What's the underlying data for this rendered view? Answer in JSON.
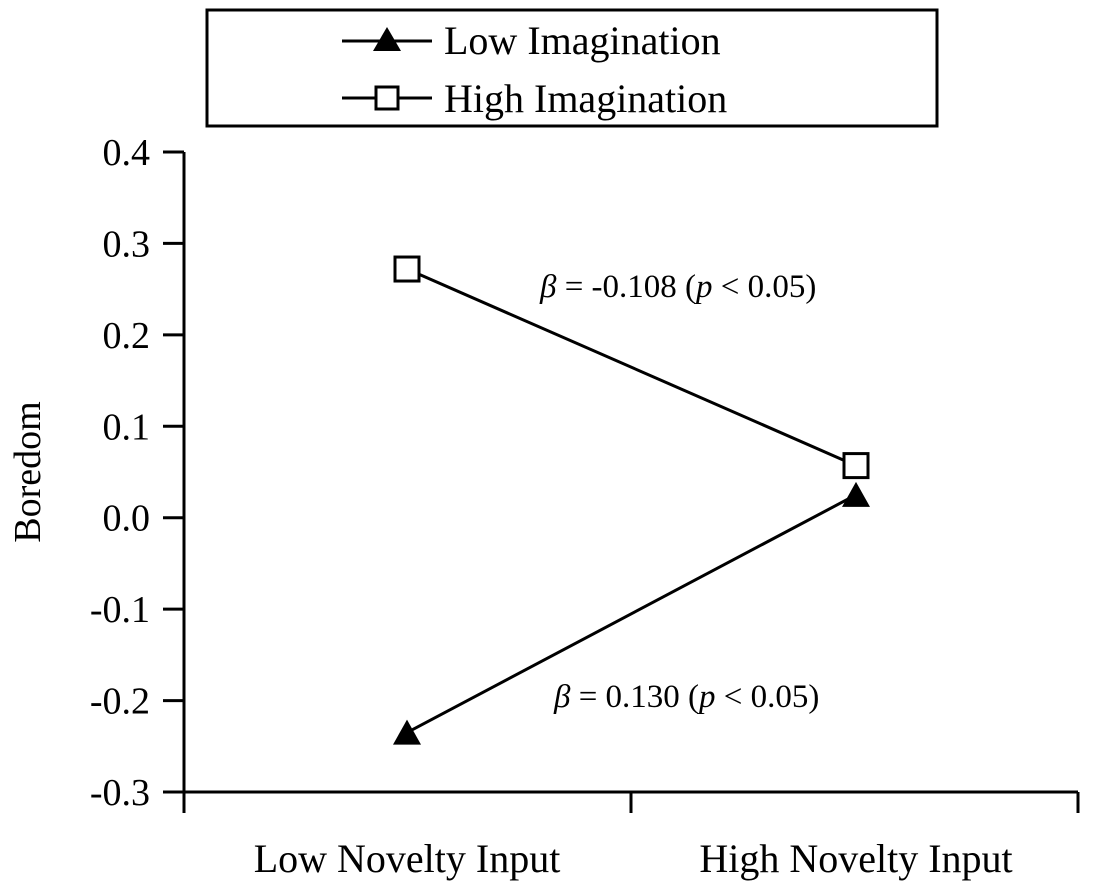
{
  "chart_data": {
    "type": "line",
    "title": "",
    "xlabel": "",
    "ylabel": "Boredom",
    "ylim": [
      -0.3,
      0.4
    ],
    "yticks": [
      "0.4",
      "0.3",
      "0.2",
      "0.1",
      "0.0",
      "-0.1",
      "-0.2",
      "-0.3"
    ],
    "ytick_values": [
      0.4,
      0.3,
      0.2,
      0.1,
      0.0,
      -0.1,
      -0.2,
      -0.3
    ],
    "categories": [
      "Low Novelty Input",
      "High Novelty Input"
    ],
    "grid": false,
    "legend_position": "top-center",
    "series": [
      {
        "name": "Low Imagination",
        "marker": "filled-triangle",
        "color": "#000000",
        "values": [
          -0.235,
          0.025
        ]
      },
      {
        "name": "High Imagination",
        "marker": "open-square",
        "color": "#000000",
        "values": [
          0.272,
          0.057
        ]
      }
    ],
    "annotations": [
      {
        "beta_symbol": "β",
        "value_text": " = -0.108 (",
        "p_symbol": "p",
        "tail_text": " < 0.05)"
      },
      {
        "beta_symbol": "β",
        "value_text": " = 0.130 (",
        "p_symbol": "p",
        "tail_text": " < 0.05)"
      }
    ]
  }
}
